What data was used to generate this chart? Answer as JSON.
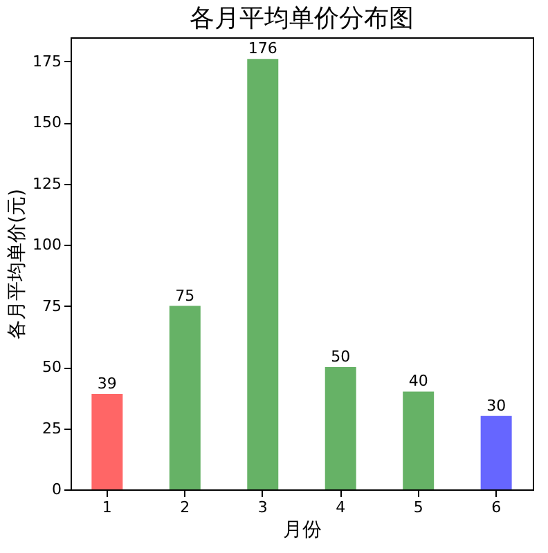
{
  "chart_data": {
    "type": "bar",
    "title": "各月平均单价分布图",
    "xlabel": "月份",
    "ylabel": "各月平均单价(元)",
    "categories": [
      "1",
      "2",
      "3",
      "4",
      "5",
      "6"
    ],
    "values": [
      39,
      75,
      176,
      50,
      40,
      30
    ],
    "colors": [
      "#ff6666",
      "#66b266",
      "#66b266",
      "#66b266",
      "#66b266",
      "#6666ff"
    ],
    "ylim": [
      0,
      184.8
    ],
    "yticks": [
      0,
      25,
      50,
      75,
      100,
      125,
      150,
      175
    ],
    "grid": false,
    "data_labels": true
  }
}
